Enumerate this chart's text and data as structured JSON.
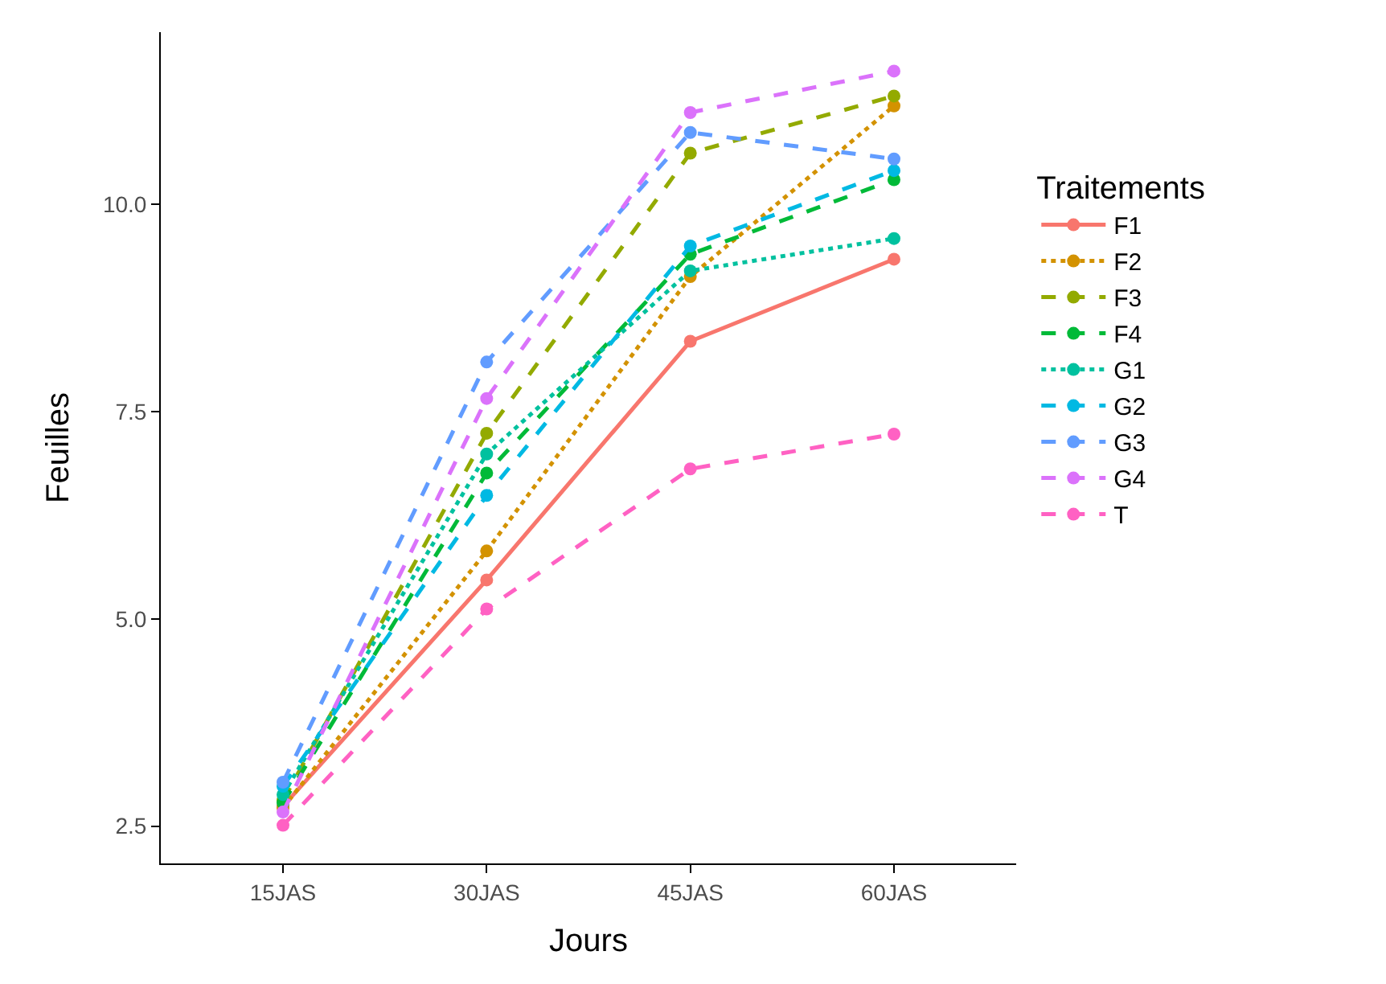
{
  "chart_data": {
    "type": "line",
    "xlabel": "Jours",
    "ylabel": "Feuilles",
    "legend_title": "Traitements",
    "categories": [
      "15JAS",
      "30JAS",
      "45JAS",
      "60JAS"
    ],
    "ylim": [
      2.05,
      12.08
    ],
    "yticks": [
      2.5,
      {
        "value": 5,
        "label": "5.0"
      },
      7.5,
      {
        "value": 10,
        "label": "10.0"
      }
    ],
    "legend": "right",
    "marker": "circle",
    "series": [
      {
        "name": "F1",
        "color": "#f8766d",
        "line_style": "solid",
        "values": [
          2.74,
          5.47,
          8.35,
          9.34
        ]
      },
      {
        "name": "F2",
        "color": "#d39200",
        "line_style": "dotted",
        "values": [
          2.72,
          5.82,
          9.13,
          11.19
        ]
      },
      {
        "name": "F3",
        "color": "#93aa00",
        "line_style": "dashed",
        "values": [
          2.81,
          7.24,
          10.62,
          11.31
        ]
      },
      {
        "name": "F4",
        "color": "#00ba38",
        "line_style": "dashed",
        "values": [
          2.78,
          6.76,
          9.4,
          10.3
        ]
      },
      {
        "name": "G1",
        "color": "#00c19f",
        "line_style": "dotted",
        "values": [
          2.88,
          6.99,
          9.2,
          9.59
        ]
      },
      {
        "name": "G2",
        "color": "#00b9e3",
        "line_style": "dashed",
        "values": [
          2.98,
          6.49,
          9.5,
          10.41
        ]
      },
      {
        "name": "G3",
        "color": "#619cff",
        "line_style": "dashed",
        "values": [
          3.03,
          8.1,
          10.87,
          10.55
        ]
      },
      {
        "name": "G4",
        "color": "#db72fb",
        "line_style": "dashed",
        "values": [
          2.67,
          7.66,
          11.11,
          11.61
        ]
      },
      {
        "name": "T",
        "color": "#ff61c3",
        "line_style": "dashed",
        "values": [
          2.51,
          5.12,
          6.81,
          7.23
        ]
      }
    ]
  }
}
